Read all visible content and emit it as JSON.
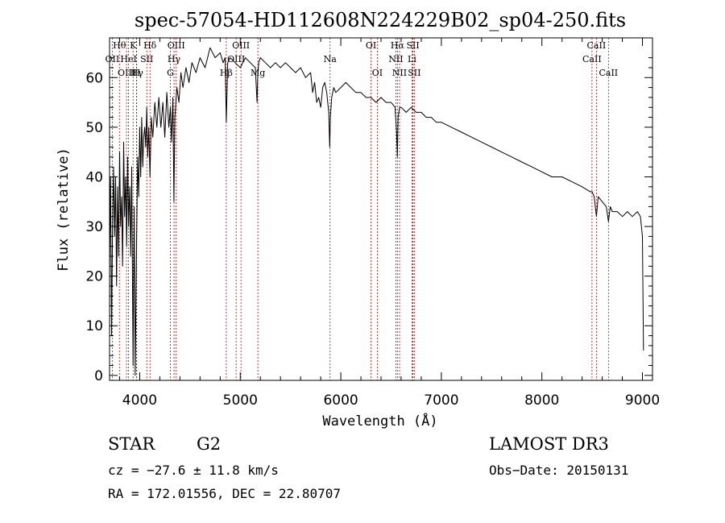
{
  "chart_data": {
    "type": "line",
    "title": "spec-57054-HD112608N224229B02_sp04-250.fits",
    "xlabel": "Wavelength (Å)",
    "ylabel": "Flux (relative)",
    "xlim": [
      3700,
      9100
    ],
    "ylim": [
      -1,
      68
    ],
    "xticks": [
      4000,
      5000,
      6000,
      7000,
      8000,
      9000
    ],
    "yticks": [
      0,
      10,
      20,
      30,
      40,
      50,
      60
    ],
    "xtick_labels": [
      "4000",
      "5000",
      "6000",
      "7000",
      "8000",
      "9000"
    ],
    "ytick_labels": [
      "0",
      "10",
      "20",
      "30",
      "40",
      "50",
      "60"
    ],
    "grid": false,
    "series": [
      {
        "name": "flux",
        "x": [
          3700,
          3710,
          3720,
          3730,
          3740,
          3750,
          3760,
          3770,
          3780,
          3790,
          3800,
          3810,
          3820,
          3830,
          3840,
          3850,
          3860,
          3870,
          3880,
          3889,
          3900,
          3910,
          3920,
          3934,
          3945,
          3955,
          3968,
          3980,
          3990,
          4000,
          4010,
          4020,
          4030,
          4040,
          4050,
          4060,
          4070,
          4080,
          4090,
          4102,
          4115,
          4130,
          4150,
          4170,
          4190,
          4210,
          4230,
          4250,
          4270,
          4290,
          4305,
          4315,
          4330,
          4340,
          4350,
          4370,
          4390,
          4410,
          4430,
          4460,
          4490,
          4520,
          4560,
          4600,
          4650,
          4700,
          4750,
          4800,
          4830,
          4850,
          4861,
          4875,
          4900,
          4950,
          5000,
          5050,
          5100,
          5150,
          5167,
          5173,
          5183,
          5200,
          5250,
          5300,
          5350,
          5400,
          5450,
          5500,
          5550,
          5600,
          5650,
          5700,
          5720,
          5740,
          5760,
          5780,
          5800,
          5820,
          5840,
          5860,
          5880,
          5890,
          5896,
          5910,
          5930,
          5950,
          6000,
          6050,
          6100,
          6150,
          6200,
          6250,
          6300,
          6350,
          6400,
          6450,
          6500,
          6540,
          6555,
          6563,
          6570,
          6585,
          6600,
          6650,
          6700,
          6750,
          6800,
          6850,
          6900,
          6950,
          7000,
          7100,
          7200,
          7300,
          7400,
          7500,
          7600,
          7700,
          7800,
          7900,
          8000,
          8100,
          8200,
          8300,
          8400,
          8480,
          8500,
          8520,
          8542,
          8560,
          8600,
          8640,
          8662,
          8680,
          8700,
          8750,
          8800,
          8850,
          8900,
          8950,
          8980,
          9000,
          9010
        ],
        "values": [
          22,
          40,
          8,
          30,
          42,
          28,
          40,
          18,
          38,
          24,
          45,
          30,
          36,
          22,
          47,
          32,
          40,
          26,
          44,
          30,
          38,
          24,
          42,
          2,
          34,
          0,
          26,
          44,
          36,
          50,
          40,
          52,
          42,
          48,
          50,
          46,
          54,
          44,
          50,
          40,
          52,
          48,
          55,
          50,
          56,
          50,
          55,
          48,
          57,
          50,
          54,
          47,
          56,
          35,
          52,
          58,
          55,
          61,
          58,
          62,
          59,
          63,
          61,
          64,
          62,
          66,
          64,
          65,
          63,
          64,
          51,
          63,
          64,
          63,
          62,
          64,
          63,
          62,
          55,
          60,
          63,
          64,
          63,
          62,
          63,
          62,
          63,
          62,
          61,
          62,
          60,
          61,
          57,
          59,
          55,
          56,
          54,
          58,
          59,
          57,
          53,
          46,
          52,
          56,
          58,
          57,
          58,
          59,
          58,
          57,
          57,
          56,
          56,
          55,
          56,
          55,
          55,
          54,
          49,
          44,
          52,
          54,
          54,
          53,
          54,
          53,
          53,
          52,
          52,
          51,
          51,
          50,
          49,
          48,
          47,
          46,
          45,
          44,
          43,
          42,
          41,
          40,
          40,
          39,
          38,
          37,
          37,
          36,
          32,
          36,
          35,
          34,
          31,
          34,
          33,
          33,
          32,
          33,
          32,
          33,
          32,
          28,
          5
        ]
      }
    ],
    "annotations": {
      "spectral_lines": [
        {
          "name": "Hθ",
          "wavelength": 3798,
          "row": 0
        },
        {
          "name": "OII",
          "wavelength": 3727,
          "row": 1
        },
        {
          "name": "OIII",
          "wavelength": 3869,
          "row": 2
        },
        {
          "name": "K",
          "wavelength": 3934,
          "row": 0
        },
        {
          "name": "HeI",
          "wavelength": 3889,
          "row": 1
        },
        {
          "name": "Hγ",
          "wavelength": 3970,
          "row": 2
        },
        {
          "name": "H",
          "wavelength": 3968,
          "row": 2
        },
        {
          "name": "SII",
          "wavelength": 4070,
          "row": 1
        },
        {
          "name": "Hδ",
          "wavelength": 4102,
          "row": 0
        },
        {
          "name": "OIII",
          "wavelength": 4363,
          "row": 0
        },
        {
          "name": "Hγ",
          "wavelength": 4341,
          "row": 1
        },
        {
          "name": "G",
          "wavelength": 4305,
          "row": 2
        },
        {
          "name": "OIII",
          "wavelength": 5007,
          "row": 0
        },
        {
          "name": "OIII",
          "wavelength": 4959,
          "row": 1
        },
        {
          "name": "Hβ",
          "wavelength": 4861,
          "row": 2
        },
        {
          "name": "Mg",
          "wavelength": 5175,
          "row": 2
        },
        {
          "name": "Na",
          "wavelength": 5893,
          "row": 1
        },
        {
          "name": "OI",
          "wavelength": 6300,
          "row": 0
        },
        {
          "name": "OI",
          "wavelength": 6363,
          "row": 2
        },
        {
          "name": "Hα",
          "wavelength": 6563,
          "row": 0
        },
        {
          "name": "NII",
          "wavelength": 6548,
          "row": 1
        },
        {
          "name": "NII",
          "wavelength": 6584,
          "row": 2
        },
        {
          "name": "SII",
          "wavelength": 6717,
          "row": 0
        },
        {
          "name": "Li",
          "wavelength": 6708,
          "row": 1
        },
        {
          "name": "SII",
          "wavelength": 6731,
          "row": 2
        },
        {
          "name": "CaII",
          "wavelength": 8542,
          "row": 0
        },
        {
          "name": "CaII",
          "wavelength": 8498,
          "row": 1
        },
        {
          "name": "CaII",
          "wavelength": 8662,
          "row": 2
        }
      ]
    }
  },
  "info": {
    "object_class": "STAR",
    "subclass": "G2",
    "survey": "LAMOST DR3",
    "redshift": "cz = −27.6 ± 11.8 km/s",
    "obs_date": "Obs−Date: 20150131",
    "coords": "RA = 172.01556, DEC =  22.80707"
  },
  "colors": {
    "spectrum": "#000000",
    "line_markers": "#cc0000",
    "axes": "#000000"
  }
}
